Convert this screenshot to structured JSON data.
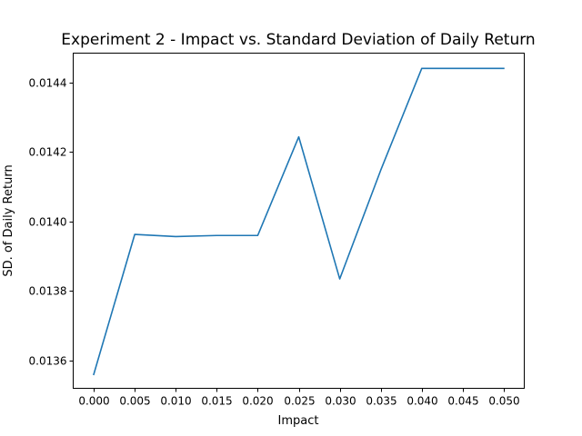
{
  "chart_data": {
    "type": "line",
    "title": "Experiment 2 - Impact vs. Standard Deviation of Daily Return",
    "xlabel": "Impact",
    "ylabel": "SD. of Daily Return",
    "x": [
      0.0,
      0.005,
      0.01,
      0.015,
      0.02,
      0.025,
      0.03,
      0.035,
      0.04,
      0.045,
      0.05
    ],
    "series": [
      {
        "values": [
          0.01356,
          0.013963,
          0.013957,
          0.01396,
          0.01396,
          0.014244,
          0.013835,
          0.014148,
          0.014441,
          0.014441,
          0.014441
        ],
        "color": "#1f77b4"
      }
    ],
    "xlim": [
      -0.0025,
      0.0525
    ],
    "ylim": [
      0.01352,
      0.014485
    ],
    "x_ticks": [
      "0.000",
      "0.005",
      "0.010",
      "0.015",
      "0.020",
      "0.025",
      "0.030",
      "0.035",
      "0.040",
      "0.045",
      "0.050"
    ],
    "y_ticks": [
      "0.0136",
      "0.0138",
      "0.0140",
      "0.0142",
      "0.0144"
    ],
    "grid": false,
    "legend": false
  }
}
